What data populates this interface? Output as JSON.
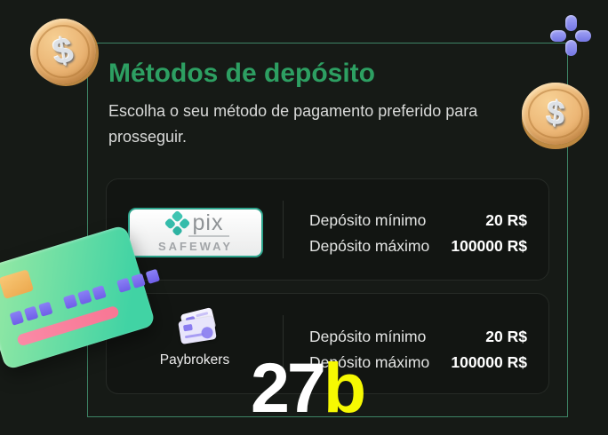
{
  "header": {
    "title": "Métodos de depósito",
    "subtitle": "Escolha o seu método de pagamento preferido para prosseguir."
  },
  "methods": [
    {
      "name": "Pix Safeway",
      "logo_primary": "pix",
      "logo_secondary": "SAFEWAY",
      "limits": [
        {
          "label": "Depósito mínimo",
          "value": "20 R$"
        },
        {
          "label": "Depósito máximo",
          "value": "100000 R$"
        }
      ]
    },
    {
      "name": "Paybrokers",
      "label": "Paybrokers",
      "limits": [
        {
          "label": "Depósito mínimo",
          "value": "20 R$"
        },
        {
          "label": "Depósito máximo",
          "value": "100000 R$"
        }
      ]
    }
  ],
  "watermark": {
    "white": "27",
    "yellow": "b"
  },
  "decor": {
    "coin_symbol": "$"
  },
  "colors": {
    "background": "#161a16",
    "frame_green": "#3d8465",
    "title_green": "#2d9f62",
    "pix_teal": "#35bcab",
    "plus_purple": "#8486ec",
    "coin_gold": "#e9b271",
    "watermark_yellow": "#f6f902",
    "card_green_gradient": "#41d3a4"
  }
}
